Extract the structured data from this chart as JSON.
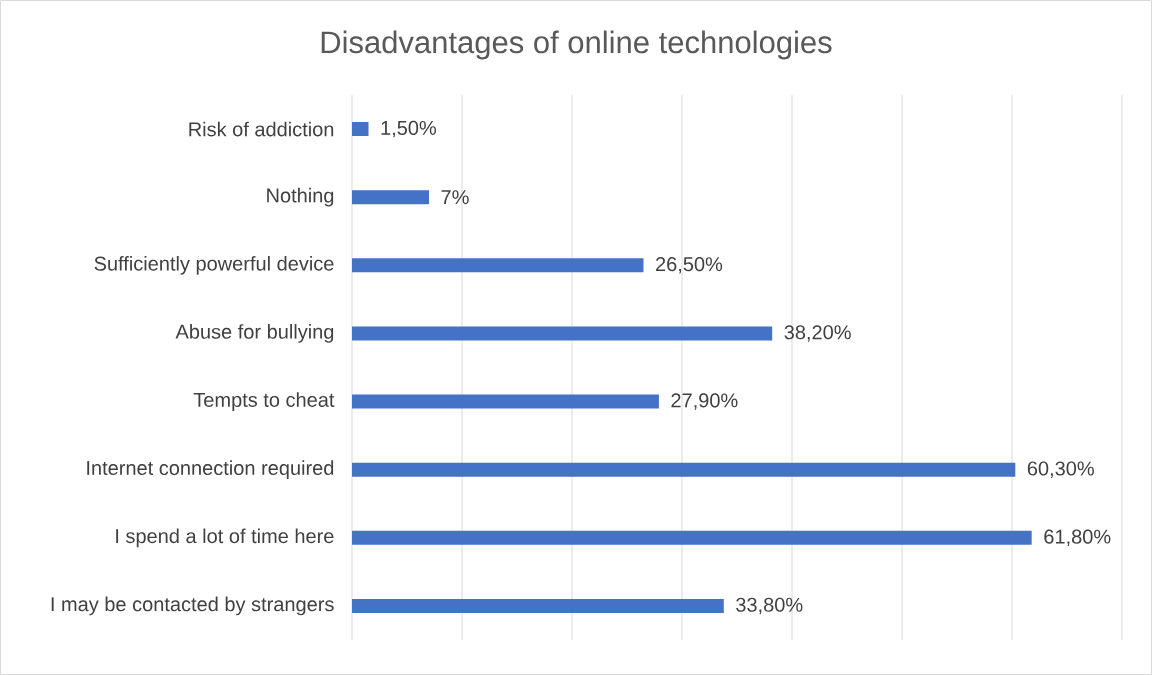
{
  "chart_data": {
    "type": "bar",
    "orientation": "horizontal",
    "title": "Disadvantages of online technologies",
    "categories": [
      "Risk of addiction",
      "Nothing",
      "Sufficiently powerful device",
      "Abuse for bullying",
      "Tempts to cheat",
      "Internet connection required",
      "I spend a lot of time here",
      "I may be contacted by strangers"
    ],
    "values": [
      1.5,
      7,
      26.5,
      38.2,
      27.9,
      60.3,
      61.8,
      33.8
    ],
    "value_labels": [
      "1,50%",
      "7%",
      "26,50%",
      "38,20%",
      "27,90%",
      "60,30%",
      "61,80%",
      "33,80%"
    ],
    "color": "#4472c4",
    "xlim": [
      0,
      70
    ],
    "xticks": [
      {
        "value": 0,
        "label": null
      },
      {
        "value": 10,
        "label": null
      },
      {
        "value": 20,
        "label": null
      },
      {
        "value": 30,
        "label": null
      },
      {
        "value": 40,
        "label": null
      },
      {
        "value": 50,
        "label": null
      },
      {
        "value": 60,
        "label": null
      },
      {
        "value": 70,
        "label": null
      }
    ],
    "grid": "x",
    "tick_labels": "y"
  }
}
